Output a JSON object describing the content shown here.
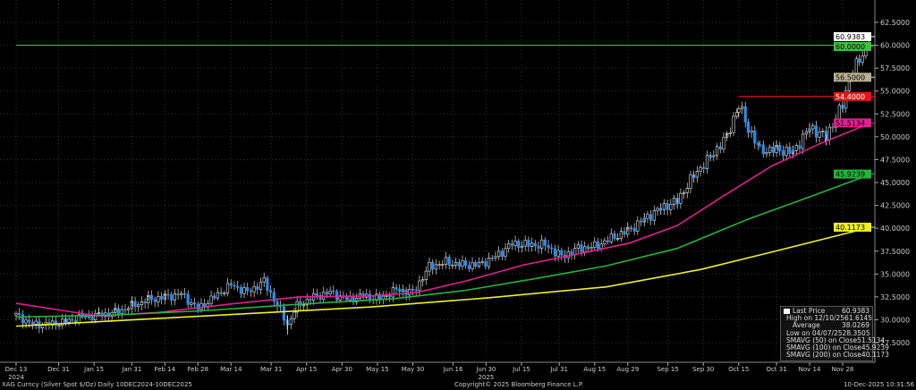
{
  "chart_data": {
    "type": "candlestick",
    "title": "XAG Curncy (Silver Spot $/Oz) Daily 10DEC2024-10DEC2025",
    "ylim": [
      25.5,
      63.5
    ],
    "y_ticks": [
      "27.5000",
      "30.0000",
      "32.5000",
      "35.0000",
      "37.5000",
      "40.0000",
      "42.5000",
      "45.0000",
      "47.5000",
      "50.0000",
      "52.5000",
      "55.0000",
      "57.5000",
      "60.0000",
      "62.5000"
    ],
    "x_ticks": [
      {
        "label": "Dec 13",
        "day": 0
      },
      {
        "label": "Dec 31",
        "day": 18
      },
      {
        "label": "Jan 15",
        "day": 33
      },
      {
        "label": "Jan 31",
        "day": 49
      },
      {
        "label": "Feb 14",
        "day": 63
      },
      {
        "label": "Feb 28",
        "day": 77
      },
      {
        "label": "Mar 14",
        "day": 91
      },
      {
        "label": "Mar 31",
        "day": 108
      },
      {
        "label": "Apr 15",
        "day": 123
      },
      {
        "label": "Apr 30",
        "day": 138
      },
      {
        "label": "May 15",
        "day": 153
      },
      {
        "label": "May 30",
        "day": 168
      },
      {
        "label": "Jun 16",
        "day": 185
      },
      {
        "label": "Jun 30",
        "day": 199
      },
      {
        "label": "Jul 15",
        "day": 214
      },
      {
        "label": "Jul 31",
        "day": 230
      },
      {
        "label": "Aug 15",
        "day": 245
      },
      {
        "label": "Aug 29",
        "day": 259
      },
      {
        "label": "Sep 15",
        "day": 276
      },
      {
        "label": "Sep 30",
        "day": 291
      },
      {
        "label": "Oct 15",
        "day": 306
      },
      {
        "label": "Oct 31",
        "day": 322
      },
      {
        "label": "Nov 14",
        "day": 336
      },
      {
        "label": "Nov 28",
        "day": 350
      }
    ],
    "year_labels": [
      {
        "label": "2024",
        "day": 0
      },
      {
        "label": "2025",
        "day": 199
      }
    ],
    "weekly_closes": [
      [
        0,
        30.5
      ],
      [
        7,
        29.5
      ],
      [
        14,
        29.5
      ],
      [
        21,
        29.8
      ],
      [
        28,
        30.3
      ],
      [
        35,
        30.5
      ],
      [
        42,
        30.8
      ],
      [
        49,
        31.5
      ],
      [
        56,
        32.2
      ],
      [
        63,
        32.5
      ],
      [
        70,
        32.8
      ],
      [
        77,
        31.2
      ],
      [
        84,
        32.5
      ],
      [
        91,
        33.8
      ],
      [
        98,
        33.0
      ],
      [
        105,
        34.2
      ],
      [
        115,
        29.5
      ],
      [
        119,
        31.5
      ],
      [
        126,
        32.5
      ],
      [
        133,
        33.0
      ],
      [
        140,
        32.2
      ],
      [
        147,
        32.6
      ],
      [
        154,
        32.3
      ],
      [
        161,
        33.3
      ],
      [
        168,
        33.0
      ],
      [
        175,
        35.8
      ],
      [
        182,
        36.3
      ],
      [
        189,
        36.0
      ],
      [
        196,
        36.0
      ],
      [
        203,
        36.9
      ],
      [
        210,
        38.3
      ],
      [
        217,
        38.2
      ],
      [
        224,
        38.2
      ],
      [
        231,
        36.9
      ],
      [
        238,
        37.8
      ],
      [
        245,
        38.0
      ],
      [
        252,
        38.9
      ],
      [
        259,
        39.7
      ],
      [
        266,
        41.0
      ],
      [
        273,
        42.2
      ],
      [
        280,
        43.0
      ],
      [
        287,
        45.8
      ],
      [
        294,
        47.8
      ],
      [
        301,
        50.0
      ],
      [
        306,
        53.5
      ],
      [
        310,
        51.0
      ],
      [
        315,
        48.5
      ],
      [
        322,
        48.6
      ],
      [
        329,
        48.3
      ],
      [
        336,
        51.0
      ],
      [
        343,
        50.0
      ],
      [
        350,
        53.5
      ],
      [
        353,
        56.5
      ],
      [
        357,
        58.3
      ],
      [
        362,
        60.9383
      ]
    ],
    "series": [
      {
        "name": "SMAVG (50) on Close",
        "color": "#e0208f",
        "last": "51.5134",
        "points": [
          [
            0,
            31.8
          ],
          [
            20,
            31.0
          ],
          [
            35,
            30.4
          ],
          [
            60,
            30.8
          ],
          [
            90,
            31.7
          ],
          [
            120,
            32.5
          ],
          [
            150,
            32.6
          ],
          [
            170,
            33.0
          ],
          [
            190,
            34.2
          ],
          [
            215,
            36.0
          ],
          [
            240,
            37.3
          ],
          [
            260,
            38.4
          ],
          [
            280,
            40.3
          ],
          [
            300,
            43.6
          ],
          [
            320,
            46.8
          ],
          [
            340,
            49.2
          ],
          [
            362,
            51.5134
          ]
        ]
      },
      {
        "name": "SMAVG (100) on Close",
        "color": "#22b53c",
        "last": "45.9239",
        "points": [
          [
            0,
            30.3
          ],
          [
            40,
            30.5
          ],
          [
            80,
            31.0
          ],
          [
            120,
            31.7
          ],
          [
            160,
            32.3
          ],
          [
            190,
            33.2
          ],
          [
            220,
            34.5
          ],
          [
            250,
            35.9
          ],
          [
            280,
            37.8
          ],
          [
            310,
            41.0
          ],
          [
            340,
            43.8
          ],
          [
            362,
            45.9239
          ]
        ]
      },
      {
        "name": "SMAVG (200) on Close",
        "color": "#f0f020",
        "last": "40.1173",
        "points": [
          [
            0,
            29.3
          ],
          [
            50,
            30.0
          ],
          [
            100,
            30.7
          ],
          [
            150,
            31.4
          ],
          [
            200,
            32.4
          ],
          [
            250,
            33.6
          ],
          [
            290,
            35.5
          ],
          [
            320,
            37.4
          ],
          [
            362,
            40.1173
          ]
        ]
      }
    ],
    "hlines": [
      {
        "value": 60.0,
        "label": "60.0000",
        "color": "#3cc23c",
        "from_day": 0
      },
      {
        "value": 56.5,
        "label": "56.5000",
        "color": "#b8b090",
        "from_day": 349
      },
      {
        "value": 54.4,
        "label": "54.4000",
        "color": "#e01818",
        "from_day": 306
      }
    ],
    "last_price_label": "60.9383"
  },
  "legend": [
    {
      "label": "Last Price",
      "value": "60.9383",
      "color": "#ffffff"
    },
    {
      "label": "High on 12/10/25",
      "value": "61.6145",
      "color": ""
    },
    {
      "label": "Average",
      "value": "38.0269",
      "color": ""
    },
    {
      "label": "Low on 04/07/25",
      "value": "28.3505",
      "color": ""
    },
    {
      "label": "SMAVG (50)  on Close",
      "value": "51.5134",
      "color": "#e0208f"
    },
    {
      "label": "SMAVG (100)  on Close",
      "value": "45.9239",
      "color": "#22b53c"
    },
    {
      "label": "SMAVG (200)  on Close",
      "value": "40.1173",
      "color": "#f0f020"
    }
  ],
  "footer": {
    "left": "XAG Curncy (Silver Spot  $/Oz) Daily 10DEC2024-10DEC2025",
    "center": "Copyright© 2025 Bloomberg Finance L.P.",
    "right": "10-Dec-2025 10:31:56"
  }
}
